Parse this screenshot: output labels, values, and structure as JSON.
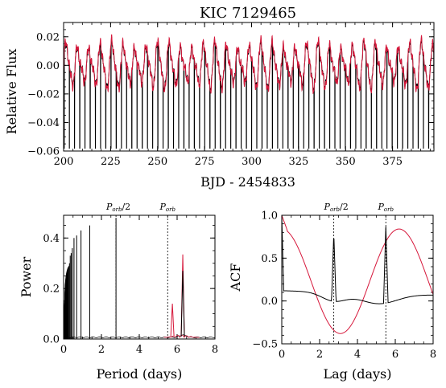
{
  "chart_data": [
    {
      "id": "lightcurve",
      "type": "line",
      "title": "KIC 7129465",
      "xlabel": "BJD - 2454833",
      "ylabel": "Relative Flux",
      "xlim": [
        200,
        397
      ],
      "ylim": [
        -0.06,
        0.03
      ],
      "xticks": [
        200,
        225,
        250,
        275,
        300,
        325,
        350,
        375
      ],
      "yticks": [
        -0.06,
        -0.04,
        -0.02,
        0.0,
        0.02
      ],
      "ytick_labels": [
        "−0.06",
        "−0.04",
        "−0.02",
        "0.00",
        "0.02"
      ],
      "orbital_period_days": 2.77,
      "eclipse_depth": -0.06,
      "spot_period_days": 6.1,
      "spot_amplitude": 0.013,
      "series": [
        {
          "color": "#000000"
        },
        {
          "color": "#d6183b"
        }
      ]
    },
    {
      "id": "periodogram",
      "type": "line",
      "xlabel": "Period (days)",
      "ylabel": "Power",
      "xlim": [
        0,
        8
      ],
      "ylim": [
        0,
        0.49
      ],
      "xticks": [
        0,
        2,
        4,
        6,
        8
      ],
      "yticks": [
        0.0,
        0.2,
        0.4
      ],
      "ytick_labels": [
        "0.0",
        "0.2",
        "0.4"
      ],
      "harmonic_peaks": [
        {
          "period": 0.31,
          "power": 0.3
        },
        {
          "period": 0.35,
          "power": 0.33
        },
        {
          "period": 0.4,
          "power": 0.34
        },
        {
          "period": 0.46,
          "power": 0.36
        },
        {
          "period": 0.55,
          "power": 0.4
        },
        {
          "period": 0.69,
          "power": 0.41
        },
        {
          "period": 0.92,
          "power": 0.43
        },
        {
          "period": 1.38,
          "power": 0.45
        },
        {
          "period": 2.77,
          "power": 0.48
        }
      ],
      "spot_peaks": [
        {
          "period": 5.75,
          "power": 0.14,
          "color": "#d6183b"
        },
        {
          "period": 6.3,
          "power": 0.335,
          "color": "#d6183b"
        },
        {
          "period": 6.3,
          "power": 0.27,
          "color": "#000000"
        }
      ],
      "markers": [
        {
          "x": 2.77,
          "label_main": "P",
          "label_sub": "orb",
          "label_suffix": "/2"
        },
        {
          "x": 5.5,
          "label_main": "P",
          "label_sub": "orb",
          "label_suffix": ""
        }
      ]
    },
    {
      "id": "acf",
      "type": "line",
      "xlabel": "Lag (days)",
      "ylabel": "ACF",
      "xlim": [
        0,
        8
      ],
      "ylim": [
        -0.5,
        1.0
      ],
      "xticks": [
        0,
        2,
        4,
        6,
        8
      ],
      "yticks": [
        -0.5,
        0.0,
        0.5,
        1.0
      ],
      "ytick_labels": [
        "−0.5",
        "0.0",
        "0.5",
        "1.0"
      ],
      "black_series": {
        "baseline_start": 0.12,
        "baseline_end": 0.07,
        "peaks": [
          {
            "x": 2.75,
            "y": 0.79
          },
          {
            "x": 5.5,
            "y": 0.87
          }
        ]
      },
      "red_series": {
        "period": 6.2,
        "min": -0.38,
        "max": 0.84
      },
      "markers": [
        {
          "x": 2.75,
          "label_main": "P",
          "label_sub": "orb",
          "label_suffix": "/2"
        },
        {
          "x": 5.5,
          "label_main": "P",
          "label_sub": "orb",
          "label_suffix": ""
        }
      ]
    }
  ]
}
